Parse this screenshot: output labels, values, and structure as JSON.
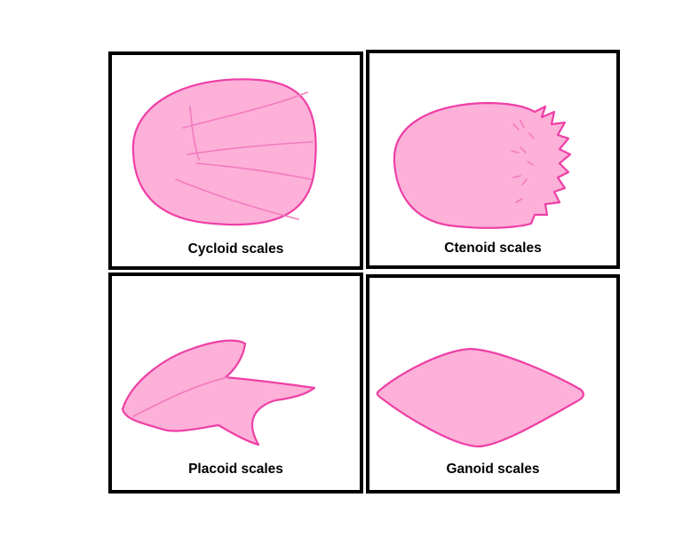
{
  "colors": {
    "scale_fill": "#fdb0d8",
    "scale_outline": "#ee3fa6",
    "scale_lines": "#f27bbf",
    "border": "#000000"
  },
  "panels": {
    "cycloid": {
      "label": "Cycloid scales"
    },
    "ctenoid": {
      "label": "Ctenoid scales"
    },
    "placoid": {
      "label": "Placoid scales"
    },
    "ganoid": {
      "label": "Ganoid scales"
    }
  }
}
